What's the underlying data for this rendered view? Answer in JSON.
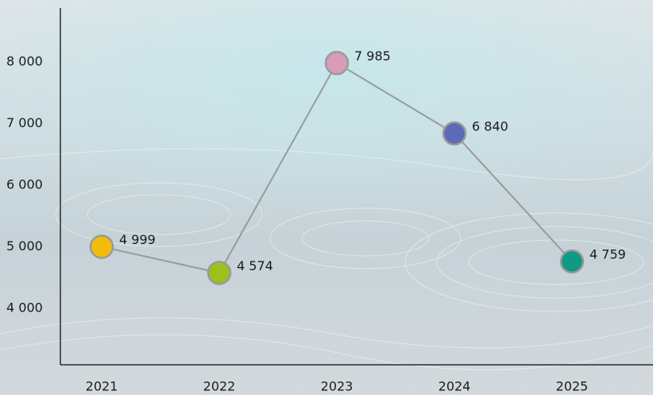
{
  "chart_data": {
    "type": "line",
    "categories": [
      "2021",
      "2022",
      "2023",
      "2024",
      "2025"
    ],
    "values": [
      4999,
      4574,
      7985,
      6840,
      4759
    ],
    "value_labels": [
      "4 999",
      "4 574",
      "7 985",
      "6 840",
      "4 759"
    ],
    "colors": [
      "#f2bd0a",
      "#9dc11a",
      "#d89cb8",
      "#5b6bb8",
      "#0e9a85"
    ],
    "line_color": "#9a9a9a",
    "ylim": [
      3080,
      8880
    ],
    "yticks": [
      {
        "value": 4000,
        "label": "4 000"
      },
      {
        "value": 5000,
        "label": "5 000"
      },
      {
        "value": 6000,
        "label": "6 000"
      },
      {
        "value": 7000,
        "label": "7 000"
      },
      {
        "value": 8000,
        "label": "8 000"
      }
    ],
    "grid": false
  }
}
